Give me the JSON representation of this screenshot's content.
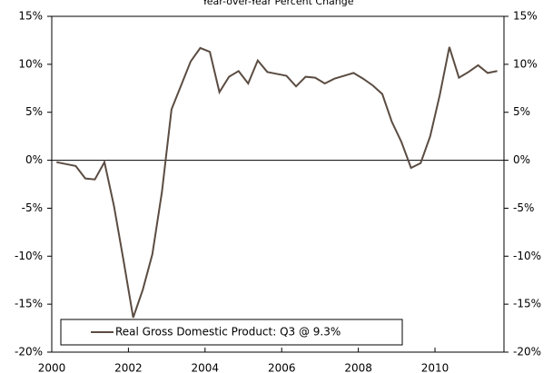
{
  "chart_data": {
    "type": "line",
    "title": "Year-over-Year Percent Change",
    "x": [
      2000.125,
      2000.375,
      2000.625,
      2000.875,
      2001.125,
      2001.375,
      2001.625,
      2001.875,
      2002.125,
      2002.375,
      2002.625,
      2002.875,
      2003.125,
      2003.375,
      2003.625,
      2003.875,
      2004.125,
      2004.375,
      2004.625,
      2004.875,
      2005.125,
      2005.375,
      2005.625,
      2005.875,
      2006.125,
      2006.375,
      2006.625,
      2006.875,
      2007.125,
      2007.375,
      2007.625,
      2007.875,
      2008.125,
      2008.375,
      2008.625,
      2008.875,
      2009.125,
      2009.375,
      2009.625,
      2009.875,
      2010.125,
      2010.375,
      2010.625,
      2010.875,
      2011.125,
      2011.375,
      2011.625
    ],
    "series": [
      {
        "name": "Real Gross Domestic Product: Q3 @ 9.3%",
        "color": "#5b4c42",
        "values": [
          -0.2,
          -0.4,
          -0.6,
          -1.9,
          -2.0,
          -0.2,
          -4.8,
          -10.5,
          -16.4,
          -13.5,
          -9.8,
          -3.3,
          5.3,
          7.8,
          10.3,
          11.7,
          11.3,
          7.1,
          8.7,
          9.3,
          8.0,
          10.4,
          9.2,
          9.0,
          8.8,
          7.7,
          8.7,
          8.6,
          8.0,
          8.5,
          8.8,
          9.1,
          8.5,
          7.8,
          6.9,
          4.0,
          1.9,
          -0.8,
          -0.3,
          2.5,
          6.8,
          11.8,
          8.6,
          9.2,
          9.9,
          9.1,
          9.3
        ]
      }
    ],
    "xlim": [
      2000,
      2011.8
    ],
    "xticks": [
      2000,
      2002,
      2004,
      2006,
      2008,
      2010
    ],
    "ylim": [
      -20,
      15
    ],
    "yticks": [
      {
        "value": -20,
        "label": "-20%"
      },
      {
        "value": -15,
        "label": "-15%"
      },
      {
        "value": -10,
        "label": "-10%"
      },
      {
        "value": -5,
        "label": "-5%"
      },
      {
        "value": 0,
        "label": "0%"
      },
      {
        "value": 5,
        "label": "5%"
      },
      {
        "value": 10,
        "label": "10%"
      },
      {
        "value": 15,
        "label": "15%"
      }
    ],
    "legend": "lower left"
  }
}
